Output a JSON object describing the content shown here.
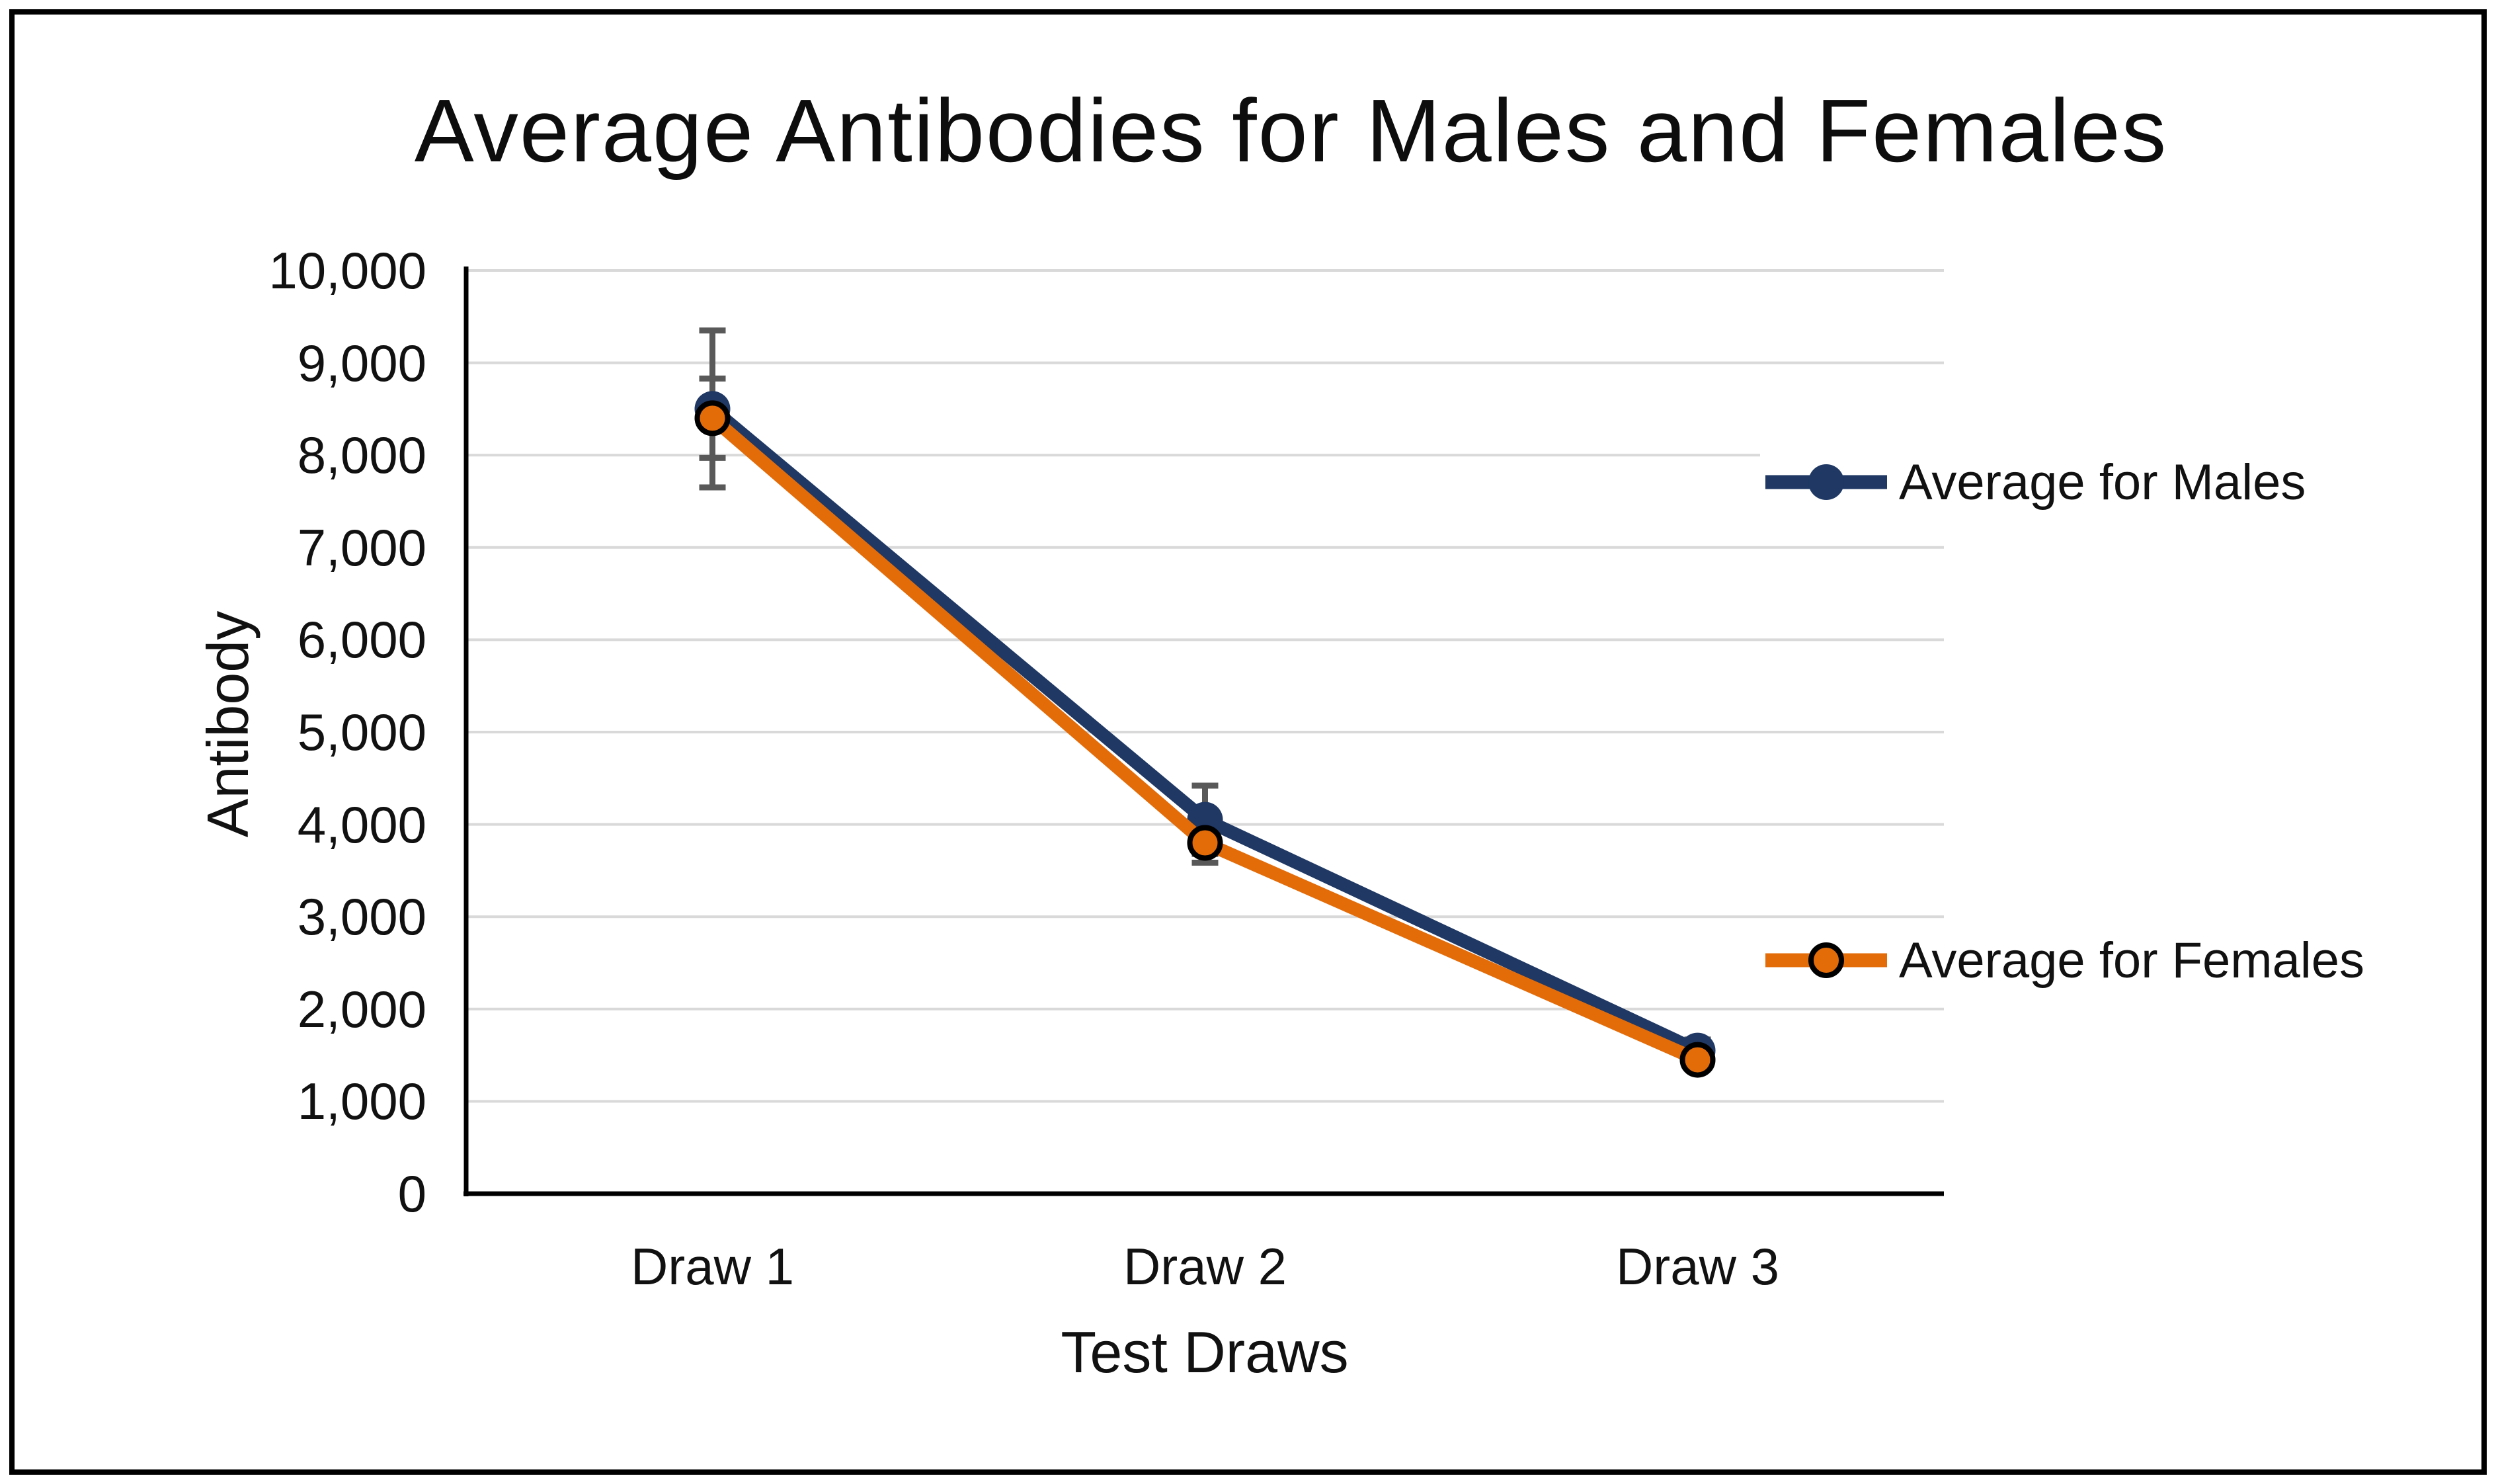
{
  "chart_data": {
    "type": "line",
    "title": "Average Antibodies for Males and Females",
    "xlabel": "Test Draws",
    "ylabel": "Antibody",
    "categories": [
      "Draw 1",
      "Draw 2",
      "Draw 3"
    ],
    "y_tick_labels": [
      "0",
      "1,000",
      "2,000",
      "3,000",
      "4,000",
      "5,000",
      "6,000",
      "7,000",
      "8,000",
      "9,000",
      "10,000"
    ],
    "ylim": [
      0,
      10000
    ],
    "ytick_step": 1000,
    "grid": "horizontal",
    "legend_position": "right-inside",
    "gridline_color": "#D9D9D9",
    "axis_color": "#000000",
    "error_bar_color": "#595959",
    "series": [
      {
        "name": "Average for Males",
        "color": "#1F3864",
        "marker": "circle",
        "marker_outline": "#1F3864",
        "values": [
          8500,
          4050,
          1550
        ],
        "error": [
          850,
          370,
          120
        ]
      },
      {
        "name": "Average for Females",
        "color": "#E36C09",
        "marker": "circle",
        "marker_outline": "#000000",
        "values": [
          8400,
          3800,
          1450
        ],
        "error": [
          430,
          215,
          80
        ]
      }
    ]
  }
}
